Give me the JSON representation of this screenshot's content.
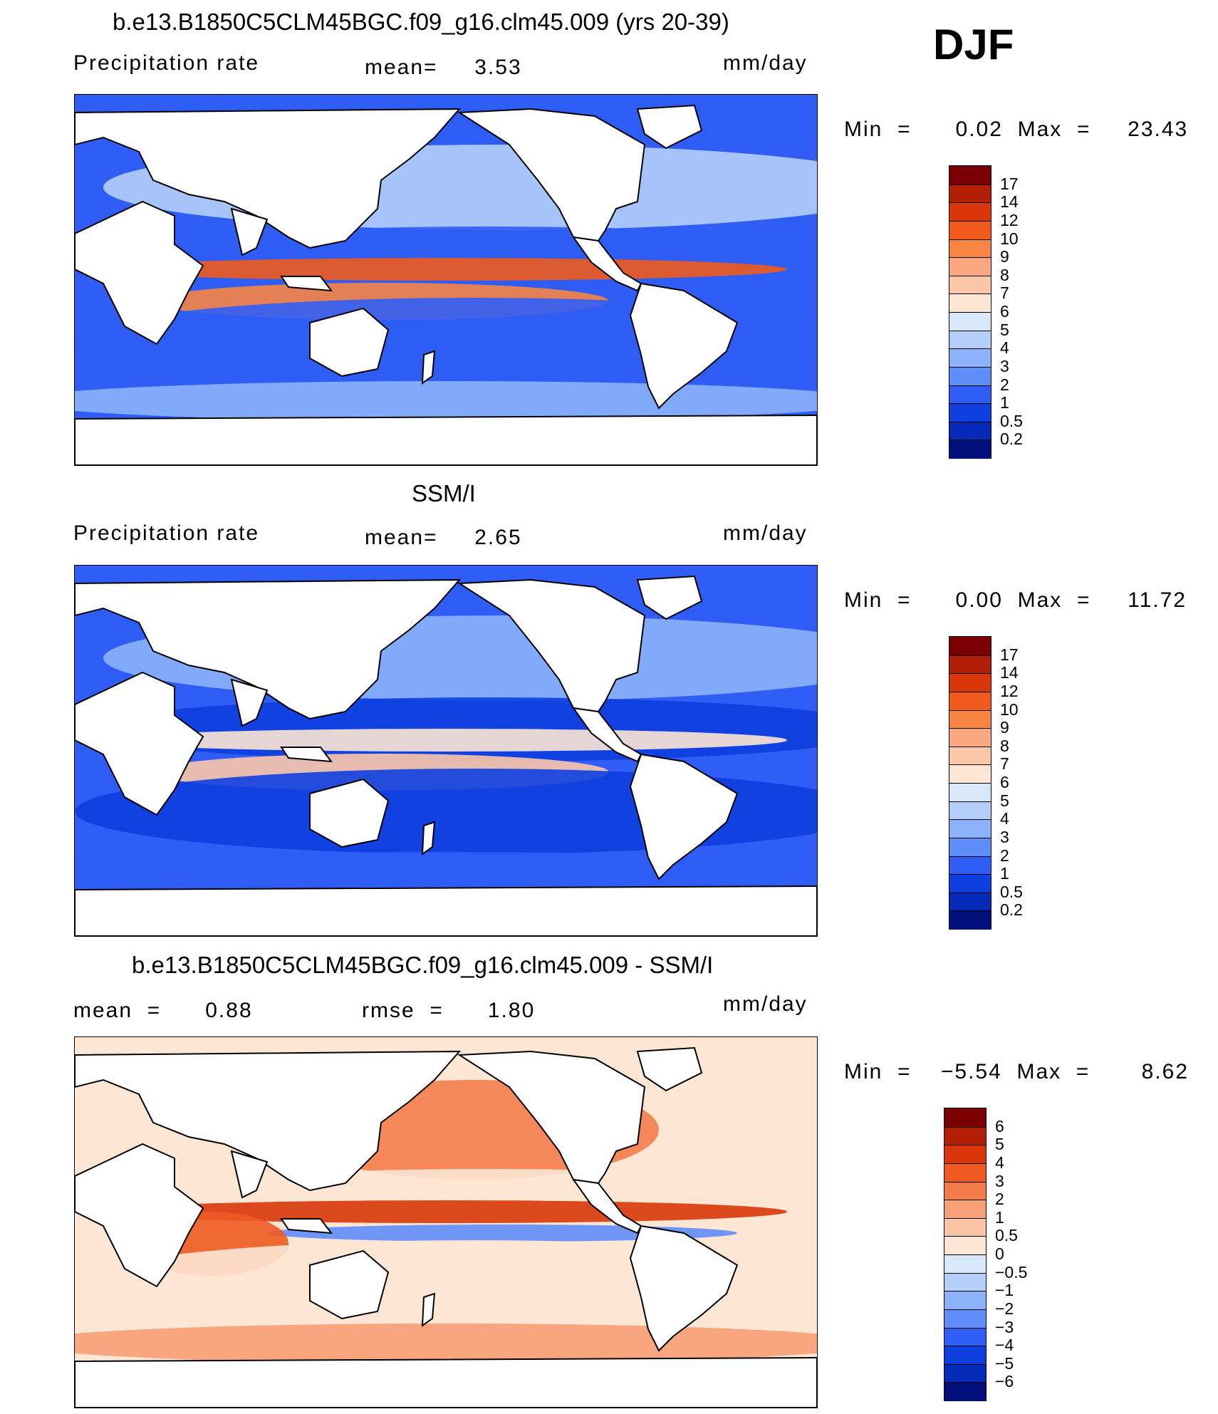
{
  "season": "DJF",
  "panels": [
    {
      "id": "model",
      "title": "b.e13.B1850C5CLM45BGC.f09_g16.clm45.009 (yrs 20-39)",
      "left_label": "Precipitation  rate",
      "mid_text": "mean=     3.53",
      "units": "mm/day",
      "min_max": "Min  =      0.02  Max  =     23.43",
      "colorbar": {
        "labels": [
          "17",
          "14",
          "12",
          "10",
          "9",
          "8",
          "7",
          "6",
          "5",
          "4",
          "3",
          "2",
          "1",
          "0.5",
          "0.2"
        ],
        "colors": [
          "#7a0004",
          "#b31e06",
          "#d9370b",
          "#f05a1a",
          "#f88444",
          "#fba780",
          "#fcc6a8",
          "#fde6d4",
          "#d8e8fb",
          "#b4cffa",
          "#8cb2fb",
          "#5f8dfa",
          "#2f5df6",
          "#0f3ee0",
          "#062ab8",
          "#00107a"
        ]
      },
      "field": [
        {
          "band": "arctic",
          "value": 1.5
        },
        {
          "band": "nh-midlat",
          "value": 4.0
        },
        {
          "band": "nh-subtrop",
          "value": 1.2
        },
        {
          "band": "itcz",
          "value": 11.0
        },
        {
          "band": "spcz",
          "value": 9.0
        },
        {
          "band": "sh-subtrop",
          "value": 1.5
        },
        {
          "band": "southern-ocean",
          "value": 3.0
        }
      ]
    },
    {
      "id": "obs",
      "title": "SSM/I",
      "left_label": "Precipitation  rate",
      "mid_text": "mean=     2.65",
      "units": "mm/day",
      "min_max": "Min  =      0.00  Max  =     11.72",
      "colorbar": {
        "labels": [
          "17",
          "14",
          "12",
          "10",
          "9",
          "8",
          "7",
          "6",
          "5",
          "4",
          "3",
          "2",
          "1",
          "0.5",
          "0.2"
        ],
        "colors": [
          "#7a0004",
          "#b31e06",
          "#d9370b",
          "#f05a1a",
          "#f88444",
          "#fba780",
          "#fcc6a8",
          "#fde6d4",
          "#d8e8fb",
          "#b4cffa",
          "#8cb2fb",
          "#5f8dfa",
          "#2f5df6",
          "#0f3ee0",
          "#062ab8",
          "#00107a"
        ]
      },
      "field": [
        {
          "band": "nh-midlat",
          "value": 3.0
        },
        {
          "band": "nh-subtrop",
          "value": 0.8
        },
        {
          "band": "itcz",
          "value": 6.0
        },
        {
          "band": "spcz",
          "value": 7.5
        },
        {
          "band": "sh-subtrop",
          "value": 0.5
        },
        {
          "band": "southern-ocean",
          "value": 1.5
        }
      ]
    },
    {
      "id": "diff",
      "title": "b.e13.B1850C5CLM45BGC.f09_g16.clm45.009 - SSM/I",
      "left_label": "mean  =      0.88",
      "mid_text": "rmse  =      1.80",
      "units": "mm/day",
      "min_max": "Min  =    −5.54  Max  =       8.62",
      "colorbar": {
        "labels": [
          "6",
          "5",
          "4",
          "3",
          "2",
          "1",
          "0.5",
          "0",
          "−0.5",
          "−1",
          "−2",
          "−3",
          "−4",
          "−5",
          "−6"
        ],
        "colors": [
          "#7a0004",
          "#b31e06",
          "#d9370b",
          "#ee5a22",
          "#f47c4a",
          "#f89f77",
          "#fbc4a5",
          "#fde6d4",
          "#d8e8fb",
          "#b4cffa",
          "#8cb2fb",
          "#5f8dfa",
          "#2f5df6",
          "#0f3ee0",
          "#062ab8",
          "#00107a"
        ]
      },
      "field": [
        {
          "band": "n-pacific",
          "value": 2.5
        },
        {
          "band": "nh-subtrop",
          "value": 0.2
        },
        {
          "band": "itcz",
          "value": 4.0
        },
        {
          "band": "eq-cold",
          "value": -3.0
        },
        {
          "band": "indian",
          "value": 3.0
        },
        {
          "band": "sh-subtrop",
          "value": 0.3
        },
        {
          "band": "southern-ocean",
          "value": 1.5
        }
      ]
    }
  ]
}
